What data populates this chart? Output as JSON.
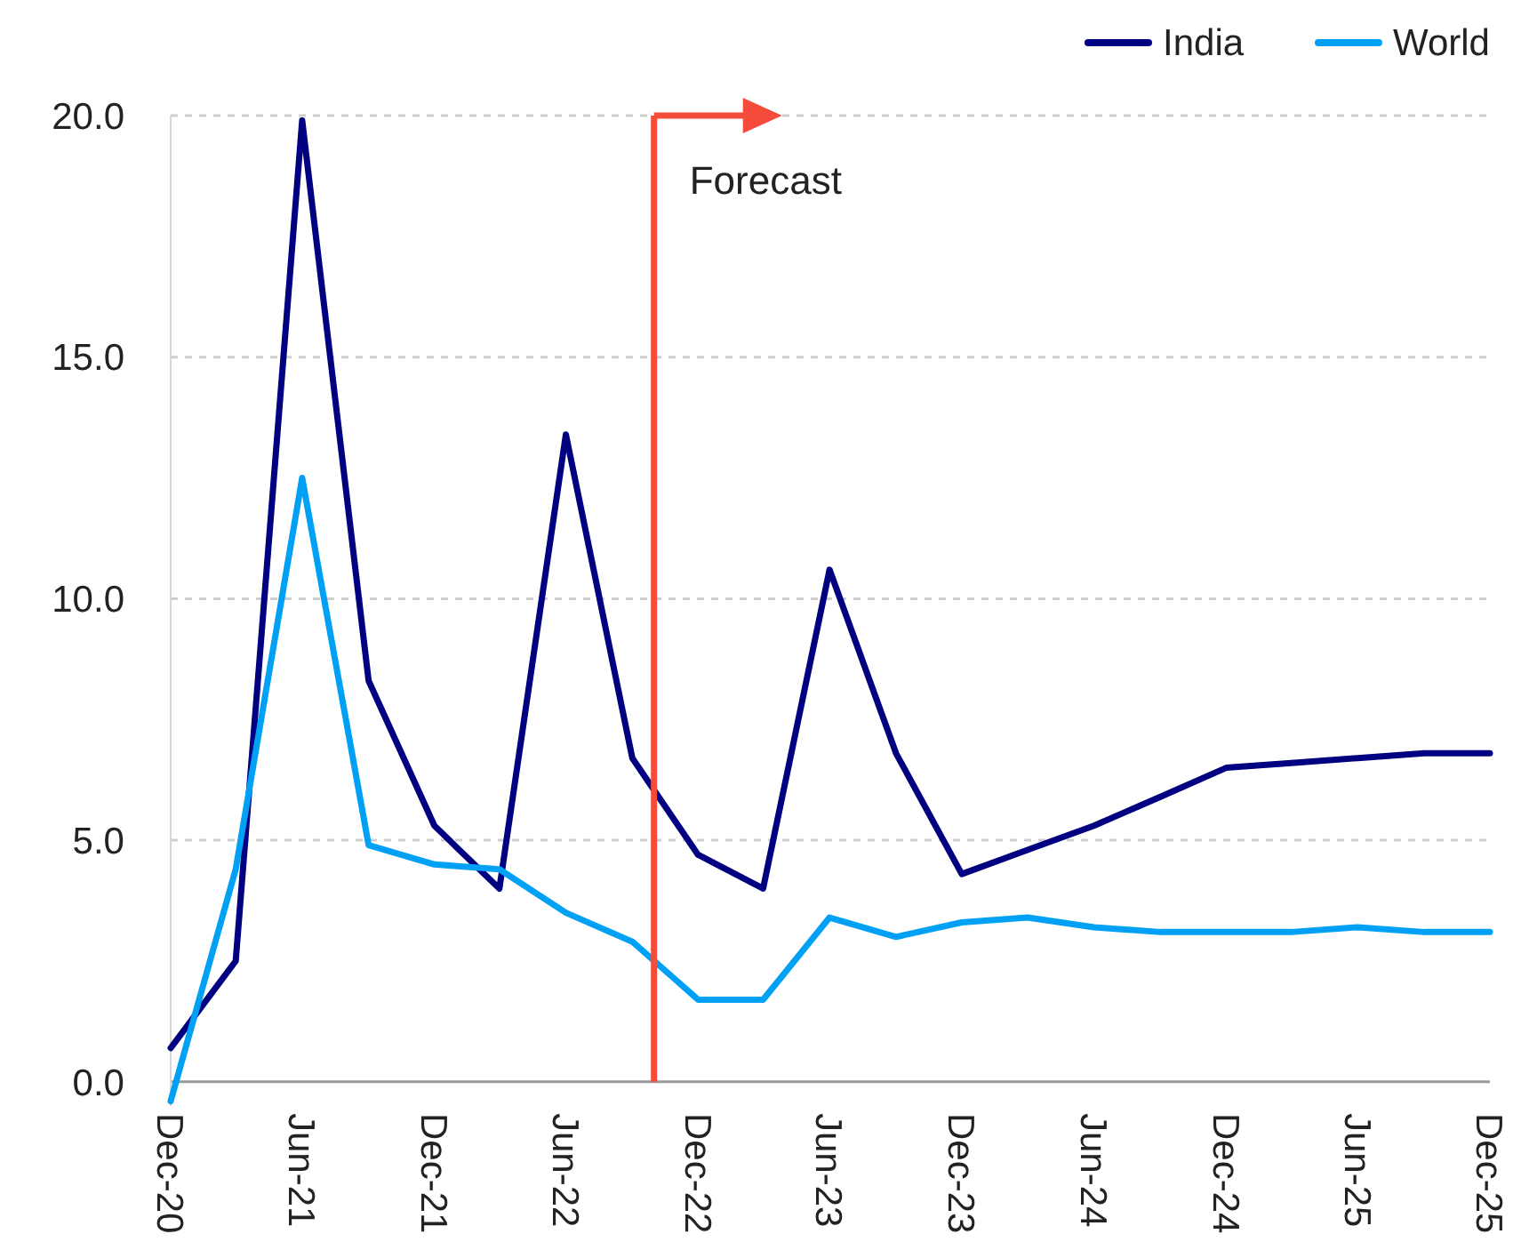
{
  "chart_data": {
    "type": "line",
    "x": [
      "2020-12",
      "2021-03",
      "2021-06",
      "2021-09",
      "2021-12",
      "2022-03",
      "2022-06",
      "2022-09",
      "2022-12",
      "2023-03",
      "2023-06",
      "2023-09",
      "2023-12",
      "2024-03",
      "2024-06",
      "2024-09",
      "2024-12",
      "2025-03",
      "2025-06",
      "2025-09",
      "2025-12"
    ],
    "series": [
      {
        "name": "India",
        "color": "#000080",
        "values": [
          0.7,
          2.5,
          19.9,
          8.3,
          5.3,
          4.0,
          13.4,
          6.7,
          4.7,
          4.0,
          10.6,
          6.8,
          4.3,
          4.8,
          5.3,
          5.9,
          6.5,
          6.6,
          6.7,
          6.8,
          6.8
        ]
      },
      {
        "name": "World",
        "color": "#00a0f5",
        "values": [
          -0.4,
          4.4,
          12.5,
          4.9,
          4.5,
          4.4,
          3.5,
          2.9,
          1.7,
          1.7,
          3.4,
          3.0,
          3.3,
          3.4,
          3.2,
          3.1,
          3.1,
          3.1,
          3.2,
          3.1,
          3.1
        ]
      }
    ],
    "xlim": [
      "2020-12",
      "2025-12"
    ],
    "xticks": [
      {
        "value": "2020-12",
        "label": "Dec-20"
      },
      {
        "value": "2021-06",
        "label": "Jun-21"
      },
      {
        "value": "2021-12",
        "label": "Dec-21"
      },
      {
        "value": "2022-06",
        "label": "Jun-22"
      },
      {
        "value": "2022-12",
        "label": "Dec-22"
      },
      {
        "value": "2023-06",
        "label": "Jun-23"
      },
      {
        "value": "2023-12",
        "label": "Dec-23"
      },
      {
        "value": "2024-06",
        "label": "Jun-24"
      },
      {
        "value": "2024-12",
        "label": "Dec-24"
      },
      {
        "value": "2025-06",
        "label": "Jun-25"
      },
      {
        "value": "2025-12",
        "label": "Dec-25"
      }
    ],
    "ylim": [
      -0.5,
      20
    ],
    "yticks": [
      {
        "value": 0,
        "label": "0.0"
      },
      {
        "value": 5,
        "label": "5.0"
      },
      {
        "value": 10,
        "label": "10.0"
      },
      {
        "value": 15,
        "label": "15.0"
      },
      {
        "value": 20,
        "label": "20.0"
      }
    ],
    "grid": "y",
    "legend": "top right",
    "ref_lines": [
      {
        "axis": "x",
        "value": "2022-10",
        "label": "Forecast",
        "color": "#f44b3a"
      }
    ]
  }
}
